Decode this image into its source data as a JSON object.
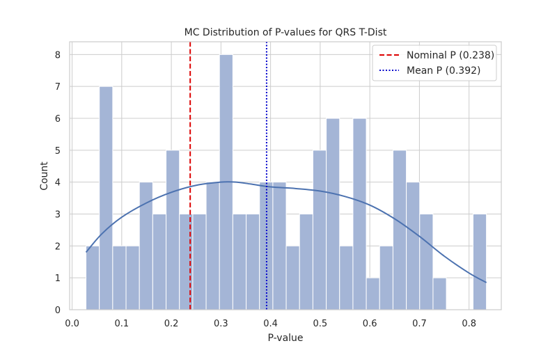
{
  "chart_data": {
    "type": "histogram",
    "title": "MC Distribution of P-values for QRS T-Dist",
    "xlabel": "P-value",
    "ylabel": "Count",
    "xlim": [
      -0.005,
      0.865
    ],
    "ylim": [
      0,
      8.4
    ],
    "xticks": [
      0.0,
      0.1,
      0.2,
      0.3,
      0.4,
      0.5,
      0.6,
      0.7,
      0.8
    ],
    "xtick_labels": [
      "0.0",
      "0.1",
      "0.2",
      "0.3",
      "0.4",
      "0.5",
      "0.6",
      "0.7",
      "0.8"
    ],
    "yticks": [
      0,
      1,
      2,
      3,
      4,
      5,
      6,
      7,
      8
    ],
    "ytick_labels": [
      "0",
      "1",
      "2",
      "3",
      "4",
      "5",
      "6",
      "7",
      "8"
    ],
    "grid": true,
    "legend_position": "top-right",
    "bin_edges": [
      0.028,
      0.0549,
      0.0818,
      0.1087,
      0.1356,
      0.1625,
      0.1894,
      0.2163,
      0.2432,
      0.2701,
      0.297,
      0.3239,
      0.3508,
      0.3777,
      0.4046,
      0.4315,
      0.4584,
      0.4853,
      0.5122,
      0.5391,
      0.566,
      0.5929,
      0.6198,
      0.6467,
      0.6736,
      0.7005,
      0.7274,
      0.7543,
      0.7812,
      0.8081,
      0.835
    ],
    "counts": [
      2,
      7,
      2,
      2,
      4,
      3,
      5,
      3,
      3,
      4,
      8,
      3,
      3,
      4,
      4,
      2,
      3,
      5,
      6,
      2,
      6,
      1,
      2,
      5,
      4,
      3,
      1,
      0,
      0,
      3
    ],
    "bar_color": "#a4b5d6",
    "kde": {
      "color": "#4c72b0",
      "x": [
        0.028,
        0.06,
        0.1,
        0.15,
        0.2,
        0.25,
        0.3,
        0.33,
        0.36,
        0.4,
        0.45,
        0.5,
        0.55,
        0.6,
        0.65,
        0.7,
        0.75,
        0.8,
        0.835
      ],
      "y": [
        1.8,
        2.38,
        2.9,
        3.35,
        3.68,
        3.9,
        4.0,
        4.0,
        3.94,
        3.85,
        3.8,
        3.72,
        3.55,
        3.28,
        2.85,
        2.3,
        1.68,
        1.15,
        0.85
      ]
    },
    "reference_lines": [
      {
        "name": "Nominal P (0.238)",
        "x": 0.238,
        "color": "#dd0000",
        "style": "dashed"
      },
      {
        "name": "Mean P (0.392)",
        "x": 0.392,
        "color": "#0000cc",
        "style": "dotted"
      }
    ]
  }
}
